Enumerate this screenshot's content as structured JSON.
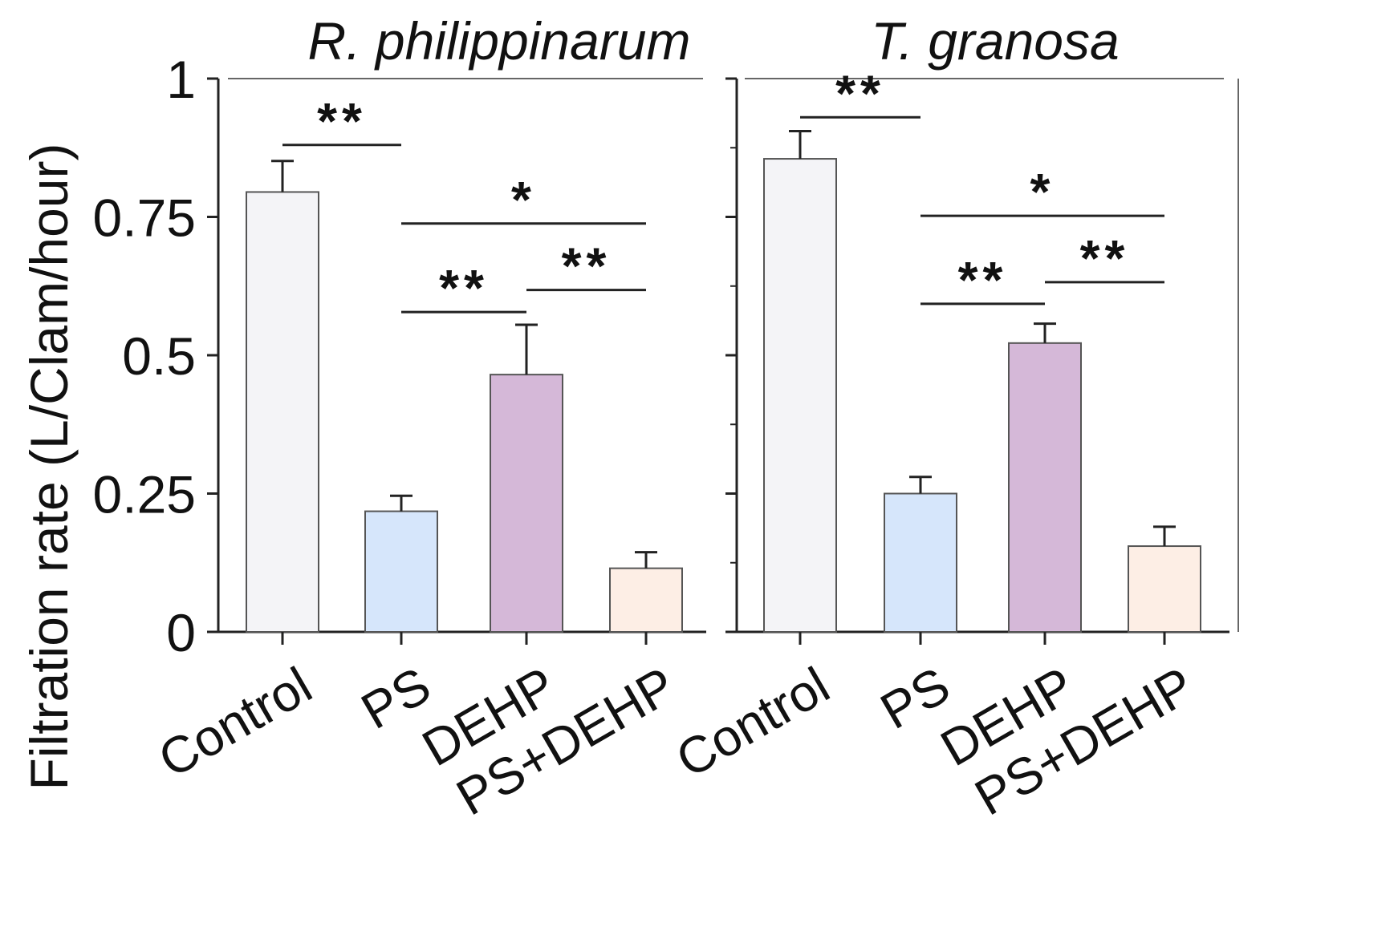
{
  "chart_data": {
    "type": "bar",
    "ylabel": "Filtration rate (L/Clam/hour)",
    "ylim": [
      0,
      1
    ],
    "yticks": [
      0,
      0.25,
      0.5,
      0.75,
      1
    ],
    "ytick_labels": [
      "0",
      "0.25",
      "0.5",
      "0.75",
      "1"
    ],
    "categories": [
      "Control",
      "PS",
      "DEHP",
      "PS+DEHP"
    ],
    "colors": [
      "#f4f4f7",
      "#d6e6fb",
      "#d5b8d8",
      "#fdeee5"
    ],
    "panels": [
      {
        "title": "R. philippinarum",
        "values": [
          0.795,
          0.218,
          0.465,
          0.115
        ],
        "errors": [
          0.056,
          0.028,
          0.09,
          0.029
        ],
        "significance": [
          {
            "from": 0,
            "to": 1,
            "label": "**",
            "level": 0.88
          },
          {
            "from": 1,
            "to": 3,
            "label": "*",
            "level": 0.738
          },
          {
            "from": 1,
            "to": 2,
            "label": "**",
            "level": 0.578
          },
          {
            "from": 2,
            "to": 3,
            "label": "**",
            "level": 0.618
          }
        ]
      },
      {
        "title": "T. granosa",
        "values": [
          0.855,
          0.25,
          0.522,
          0.155
        ],
        "errors": [
          0.05,
          0.03,
          0.035,
          0.035
        ],
        "significance": [
          {
            "from": 0,
            "to": 1,
            "label": "**",
            "level": 0.93
          },
          {
            "from": 1,
            "to": 3,
            "label": "*",
            "level": 0.752
          },
          {
            "from": 1,
            "to": 2,
            "label": "**",
            "level": 0.593
          },
          {
            "from": 2,
            "to": 3,
            "label": "**",
            "level": 0.632
          }
        ]
      }
    ]
  }
}
